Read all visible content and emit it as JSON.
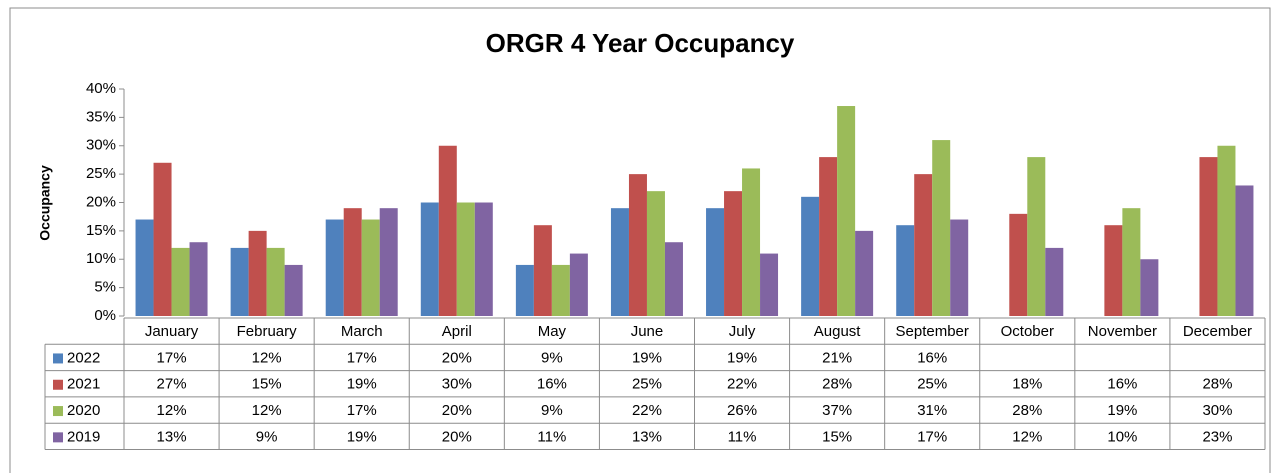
{
  "chart_data": {
    "type": "bar",
    "title": "ORGR 4 Year Occupancy",
    "y_label": "Occupancy",
    "categories": [
      "January",
      "February",
      "March",
      "April",
      "May",
      "June",
      "July",
      "August",
      "September",
      "October",
      "November",
      "December"
    ],
    "series": [
      {
        "name": "2022",
        "color": "#4f81bd",
        "values": [
          17,
          12,
          17,
          20,
          9,
          19,
          19,
          21,
          16,
          null,
          null,
          null
        ],
        "value_labels": [
          "17%",
          "12%",
          "17%",
          "20%",
          "9%",
          "19%",
          "19%",
          "21%",
          "16%",
          null,
          null,
          null
        ]
      },
      {
        "name": "2021",
        "color": "#c0504d",
        "values": [
          27,
          15,
          19,
          30,
          16,
          25,
          22,
          28,
          25,
          18,
          16,
          28
        ],
        "value_labels": [
          "27%",
          "15%",
          "19%",
          "30%",
          "16%",
          "25%",
          "22%",
          "28%",
          "25%",
          "18%",
          "16%",
          "28%"
        ]
      },
      {
        "name": "2020",
        "color": "#9bbb59",
        "values": [
          12,
          12,
          17,
          20,
          9,
          22,
          26,
          37,
          31,
          28,
          19,
          30
        ],
        "value_labels": [
          "12%",
          "12%",
          "17%",
          "20%",
          "9%",
          "22%",
          "26%",
          "37%",
          "31%",
          "28%",
          "19%",
          "30%"
        ]
      },
      {
        "name": "2019",
        "color": "#8064a2",
        "values": [
          13,
          9,
          19,
          20,
          11,
          13,
          11,
          15,
          17,
          12,
          10,
          23
        ],
        "value_labels": [
          "13%",
          "9%",
          "19%",
          "20%",
          "11%",
          "13%",
          "11%",
          "15%",
          "17%",
          "12%",
          "10%",
          "23%"
        ]
      }
    ],
    "ylim": [
      0,
      40
    ],
    "yticks": [
      {
        "value": 0,
        "label": "0%"
      },
      {
        "value": 5,
        "label": "5%"
      },
      {
        "value": 10,
        "label": "10%"
      },
      {
        "value": 15,
        "label": "15%"
      },
      {
        "value": 20,
        "label": "20%"
      },
      {
        "value": 25,
        "label": "25%"
      },
      {
        "value": 30,
        "label": "30%"
      },
      {
        "value": 35,
        "label": "35%"
      },
      {
        "value": 40,
        "label": "40%"
      }
    ],
    "grid": false
  }
}
